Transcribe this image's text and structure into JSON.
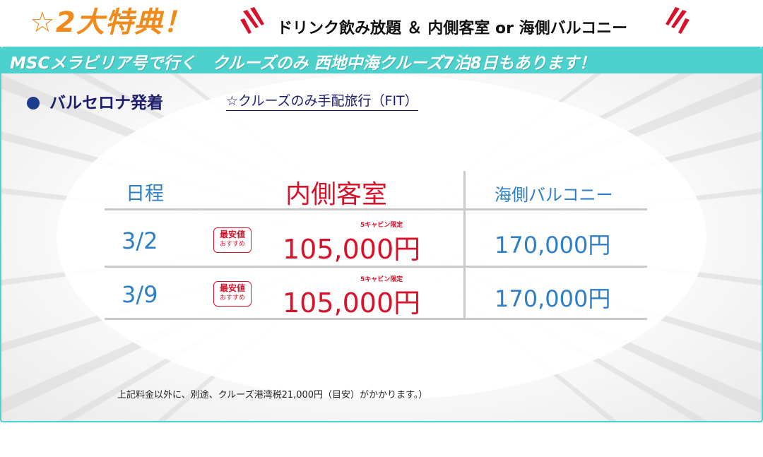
{
  "header": {
    "star": "☆",
    "perk_title": "2大特典！",
    "perk_text": "ドリンク飲み放題 ＆ 内側客室 or 海側バルコニー"
  },
  "banner": {
    "text": "MSCメラビリア号で行く　クルーズのみ 西地中海クルーズ7泊8日もあります！"
  },
  "departure": {
    "label": "バルセロナ発着",
    "fit_link": "☆クルーズのみ手配旅行（FIT）"
  },
  "table": {
    "headers": {
      "schedule": "日程",
      "inside": "内側客室",
      "ocean": "海側バルコニー"
    },
    "rows": [
      {
        "date": "3/2",
        "badge_main": "最安値",
        "badge_sub": "おすすめ",
        "limit_note": "5キャビン限定",
        "inside_price": "105,000円",
        "ocean_price": "170,000円"
      },
      {
        "date": "3/9",
        "badge_main": "最安値",
        "badge_sub": "おすすめ",
        "limit_note": "5キャビン限定",
        "inside_price": "105,000円",
        "ocean_price": "170,000円"
      }
    ]
  },
  "footnote": "上記料金以外に、別途、クルーズ港湾税21,000円（目安）がかかります。）",
  "colors": {
    "accent_teal": "#4cd1cc",
    "highlight_orange": "#f08a1a",
    "price_red": "#d8122a",
    "text_blue": "#2d7fc8",
    "heading_navy": "#1e1e6e"
  }
}
